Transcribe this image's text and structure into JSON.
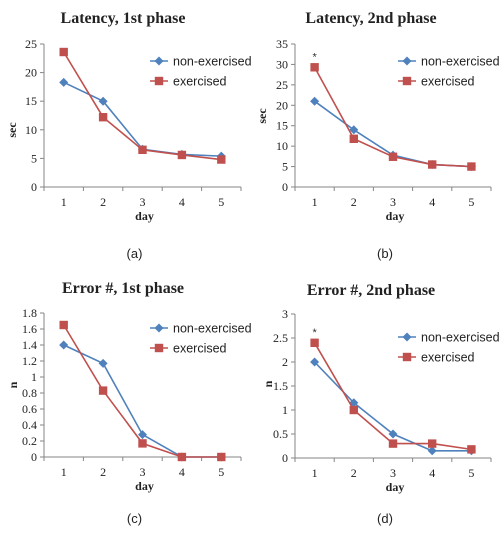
{
  "chart_data": [
    {
      "type": "line",
      "title": "Latency, 1st phase",
      "xlabel": "day",
      "ylabel": "sec",
      "caption": "(a)",
      "categories": [
        "1",
        "2",
        "3",
        "4",
        "5"
      ],
      "yticks": [
        "0",
        "5",
        "10",
        "15",
        "20",
        "25"
      ],
      "ylim": [
        0,
        25
      ],
      "grid": false,
      "legend_position": "top-right",
      "series": [
        {
          "name": "non-exercised",
          "color": "#4f81bd",
          "marker": "diamond",
          "values": [
            18.3,
            15.0,
            6.6,
            5.7,
            5.4
          ]
        },
        {
          "name": "exercised",
          "color": "#c0504d",
          "marker": "square",
          "values": [
            23.6,
            12.2,
            6.5,
            5.6,
            4.8
          ]
        }
      ],
      "annotations": []
    },
    {
      "type": "line",
      "title": "Latency, 2nd phase",
      "xlabel": "day",
      "ylabel": "sec",
      "caption": "(b)",
      "categories": [
        "1",
        "2",
        "3",
        "4",
        "5"
      ],
      "yticks": [
        "0",
        "5",
        "10",
        "15",
        "20",
        "25",
        "30",
        "35"
      ],
      "ylim": [
        0,
        35
      ],
      "grid": false,
      "legend_position": "top-right",
      "series": [
        {
          "name": "non-exercised",
          "color": "#4f81bd",
          "marker": "diamond",
          "values": [
            21.0,
            14.0,
            7.8,
            5.5,
            5.0
          ]
        },
        {
          "name": "exercised",
          "color": "#c0504d",
          "marker": "square",
          "values": [
            29.3,
            11.8,
            7.4,
            5.5,
            5.0
          ]
        }
      ],
      "annotations": [
        {
          "text": "*",
          "x": "1",
          "series": "exercised"
        }
      ]
    },
    {
      "type": "line",
      "title": "Error #, 1st phase",
      "xlabel": "day",
      "ylabel": "n",
      "caption": "(c)",
      "categories": [
        "1",
        "2",
        "3",
        "4",
        "5"
      ],
      "yticks": [
        "0",
        "0.2",
        "0.4",
        "0.6",
        "0.8",
        "1",
        "1.2",
        "1.4",
        "1.6",
        "1.8"
      ],
      "ylim": [
        0,
        1.8
      ],
      "grid": false,
      "legend_position": "top-right",
      "series": [
        {
          "name": "non-exercised",
          "color": "#4f81bd",
          "marker": "diamond",
          "values": [
            1.4,
            1.17,
            0.28,
            0.0,
            0.0
          ]
        },
        {
          "name": "exercised",
          "color": "#c0504d",
          "marker": "square",
          "values": [
            1.65,
            0.83,
            0.17,
            0.0,
            0.0
          ]
        }
      ],
      "annotations": []
    },
    {
      "type": "line",
      "title": "Error #, 2nd phase",
      "xlabel": "day",
      "ylabel": "n",
      "caption": "(d)",
      "categories": [
        "1",
        "2",
        "3",
        "4",
        "5"
      ],
      "yticks": [
        "0",
        "0.5",
        "1",
        "1.5",
        "2",
        "2.5",
        "3"
      ],
      "ylim": [
        0,
        3
      ],
      "grid": false,
      "legend_position": "top-right",
      "series": [
        {
          "name": "non-exercised",
          "color": "#4f81bd",
          "marker": "diamond",
          "values": [
            2.0,
            1.15,
            0.5,
            0.15,
            0.15
          ]
        },
        {
          "name": "exercised",
          "color": "#c0504d",
          "marker": "square",
          "values": [
            2.4,
            1.0,
            0.3,
            0.3,
            0.18
          ]
        }
      ],
      "annotations": [
        {
          "text": "*",
          "x": "1",
          "series": "exercised"
        }
      ]
    }
  ]
}
